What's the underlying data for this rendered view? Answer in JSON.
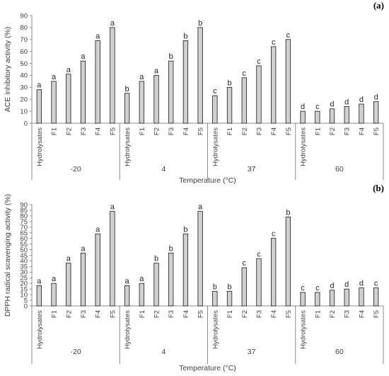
{
  "chart_data": [
    {
      "type": "bar",
      "panel_label": "(a)",
      "ylabel": "ACE inhibitory activity (%)",
      "xlabel": "Temperature (°C)",
      "ylim": [
        0,
        90
      ],
      "yticks": [
        0,
        10,
        20,
        30,
        40,
        50,
        60,
        70,
        80,
        90
      ],
      "grid": false,
      "bar_color": "#d0d0d0",
      "categories": [
        "Hydrolysates",
        "F1",
        "F2",
        "F3",
        "F4",
        "F5"
      ],
      "groups": [
        {
          "name": "-20",
          "values": [
            28,
            35,
            41,
            52,
            69,
            80
          ],
          "letters": [
            "a",
            "a",
            "a",
            "a",
            "a",
            "a"
          ]
        },
        {
          "name": "4",
          "values": [
            25,
            35,
            40,
            52,
            69,
            80
          ],
          "letters": [
            "b",
            "a",
            "a",
            "b",
            "b",
            "b"
          ]
        },
        {
          "name": "37",
          "values": [
            23,
            30,
            38,
            48,
            64,
            70
          ],
          "letters": [
            "c",
            "b",
            "c",
            "c",
            "c",
            "c"
          ]
        },
        {
          "name": "60",
          "values": [
            10,
            10,
            12,
            14,
            16,
            18
          ],
          "letters": [
            "d",
            "c",
            "d",
            "d",
            "d",
            "d"
          ]
        }
      ]
    },
    {
      "type": "bar",
      "panel_label": "(b)",
      "ylabel": "DPPH radical scavenging activity (%)",
      "xlabel": "Temperature (°C)",
      "ylim": [
        0,
        90
      ],
      "yticks": [
        0,
        5,
        10,
        15,
        20,
        25,
        30,
        35,
        40,
        45,
        50,
        55,
        60,
        65,
        70,
        75,
        80,
        85,
        90
      ],
      "grid": false,
      "bar_color": "#d0d0d0",
      "categories": [
        "Hydrolysates",
        "F1",
        "F2",
        "F3",
        "F4",
        "F5"
      ],
      "groups": [
        {
          "name": "-20",
          "values": [
            18,
            20,
            38,
            47,
            64,
            84
          ],
          "letters": [
            "a",
            "a",
            "a",
            "a",
            "a",
            "a"
          ]
        },
        {
          "name": "4",
          "values": [
            18,
            20,
            38,
            47,
            64,
            84
          ],
          "letters": [
            "a",
            "a",
            "b",
            "b",
            "b",
            "a"
          ]
        },
        {
          "name": "37",
          "values": [
            13,
            13,
            34,
            42,
            60,
            79
          ],
          "letters": [
            "b",
            "b",
            "c",
            "c",
            "c",
            "b"
          ]
        },
        {
          "name": "60",
          "values": [
            12,
            12,
            14,
            15,
            16,
            16
          ],
          "letters": [
            "c",
            "c",
            "d",
            "d",
            "d",
            "c"
          ]
        }
      ]
    }
  ]
}
